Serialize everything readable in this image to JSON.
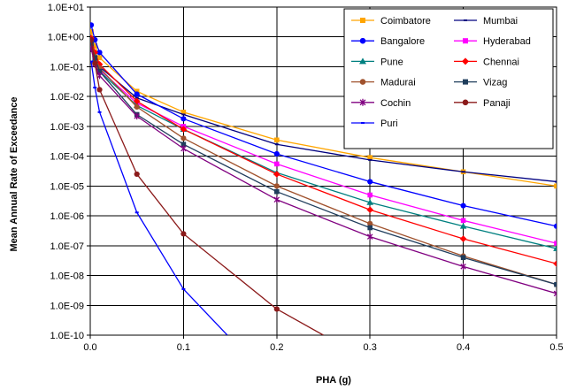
{
  "chart_data": {
    "type": "line",
    "xlabel": "PHA (g)",
    "ylabel": "Mean Annual Rate of Exceedance",
    "xlim": [
      0,
      0.5
    ],
    "ylim": [
      1e-10,
      10
    ],
    "yscale": "log",
    "grid": true,
    "legend_position": "top-right",
    "x_ticks": [
      "0.0",
      "0.1",
      "0.2",
      "0.3",
      "0.4",
      "0.5"
    ],
    "y_ticks": [
      "1.0E-10",
      "1.0E-09",
      "1.0E-08",
      "1.0E-07",
      "1.0E-06",
      "1.0E-05",
      "1.0E-04",
      "1.0E-03",
      "1.0E-02",
      "1.0E-01",
      "1.0E+00",
      "1.0E+01"
    ],
    "series": [
      {
        "name": "Coimbatore",
        "color": "#FFA500",
        "marker": "square",
        "x": [
          0.001,
          0.005,
          0.01,
          0.05,
          0.1,
          0.2,
          0.3,
          0.4,
          0.5
        ],
        "y": [
          1.5,
          0.5,
          0.2,
          0.015,
          0.003,
          0.00035,
          9e-05,
          3e-05,
          1e-05
        ]
      },
      {
        "name": "Mumbai",
        "color": "#000080",
        "marker": "dash",
        "x": [
          0.001,
          0.005,
          0.01,
          0.05,
          0.1,
          0.2,
          0.3,
          0.4,
          0.5
        ],
        "y": [
          0.7,
          0.25,
          0.1,
          0.009,
          0.0025,
          0.00025,
          7.5e-05,
          3e-05,
          1.4e-05
        ]
      },
      {
        "name": "Bangalore",
        "color": "#0000FF",
        "marker": "circle",
        "x": [
          0.001,
          0.005,
          0.01,
          0.05,
          0.1,
          0.2,
          0.3,
          0.4,
          0.5
        ],
        "y": [
          2.5,
          0.8,
          0.3,
          0.012,
          0.0018,
          0.00012,
          1.4e-05,
          2.2e-06,
          4.5e-07
        ]
      },
      {
        "name": "Hyderabad",
        "color": "#FF00FF",
        "marker": "square",
        "x": [
          0.001,
          0.005,
          0.01,
          0.05,
          0.1,
          0.2,
          0.3,
          0.4,
          0.5
        ],
        "y": [
          0.6,
          0.2,
          0.08,
          0.006,
          0.001,
          5.5e-05,
          5e-06,
          7e-07,
          1.2e-07
        ]
      },
      {
        "name": "Pune",
        "color": "#008080",
        "marker": "triangle",
        "x": [
          0.001,
          0.005,
          0.01,
          0.05,
          0.1,
          0.2,
          0.3,
          0.4,
          0.5
        ],
        "y": [
          0.5,
          0.18,
          0.07,
          0.005,
          0.0008,
          2.8e-05,
          2.8e-06,
          4.5e-07,
          8e-08
        ]
      },
      {
        "name": "Chennai",
        "color": "#FF0000",
        "marker": "diamond",
        "x": [
          0.001,
          0.005,
          0.01,
          0.05,
          0.1,
          0.2,
          0.3,
          0.4,
          0.5
        ],
        "y": [
          0.9,
          0.3,
          0.12,
          0.007,
          0.0008,
          2.5e-05,
          1.6e-06,
          1.7e-07,
          2.5e-08
        ]
      },
      {
        "name": "Madurai",
        "color": "#A0522D",
        "marker": "circle",
        "x": [
          0.001,
          0.005,
          0.01,
          0.05,
          0.1,
          0.2,
          0.3,
          0.4,
          0.5
        ],
        "y": [
          0.7,
          0.22,
          0.09,
          0.0045,
          0.0004,
          1e-05,
          5.5e-07,
          4.5e-08,
          5e-09
        ]
      },
      {
        "name": "Vizag",
        "color": "#1F3D5C",
        "marker": "square",
        "x": [
          0.001,
          0.005,
          0.01,
          0.05,
          0.1,
          0.2,
          0.3,
          0.4,
          0.5
        ],
        "y": [
          0.6,
          0.2,
          0.07,
          0.0025,
          0.00025,
          6.5e-06,
          4e-07,
          4e-08,
          5e-09
        ]
      },
      {
        "name": "Cochin",
        "color": "#800080",
        "marker": "star",
        "x": [
          0.001,
          0.005,
          0.01,
          0.05,
          0.1,
          0.2,
          0.3,
          0.4,
          0.5
        ],
        "y": [
          0.4,
          0.12,
          0.05,
          0.0022,
          0.00018,
          3.5e-06,
          2e-07,
          2e-08,
          2.5e-09
        ]
      },
      {
        "name": "Panaji",
        "color": "#8B1A1A",
        "marker": "circle",
        "x": [
          0.001,
          0.005,
          0.01,
          0.05,
          0.1,
          0.2,
          0.25
        ],
        "y": [
          0.8,
          0.13,
          0.017,
          2.5e-05,
          2.5e-07,
          7.5e-10,
          1e-10
        ]
      },
      {
        "name": "Puri",
        "color": "#0000FF",
        "marker": "dash",
        "x": [
          0.001,
          0.005,
          0.01,
          0.05,
          0.1,
          0.147
        ],
        "y": [
          0.15,
          0.02,
          0.003,
          1.3e-06,
          3.5e-09,
          1e-10
        ]
      }
    ]
  }
}
